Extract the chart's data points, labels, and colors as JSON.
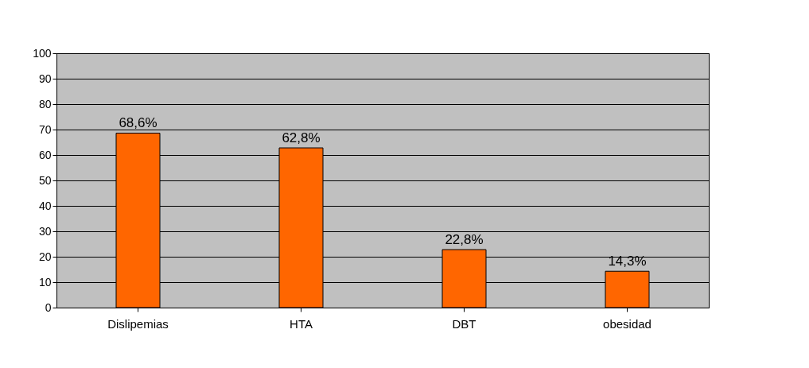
{
  "chart_data": {
    "type": "bar",
    "categories": [
      "Dislipemias",
      "HTA",
      "DBT",
      "obesidad"
    ],
    "values": [
      68.6,
      62.8,
      22.8,
      14.3
    ],
    "value_labels": [
      "68,6%",
      "62,8%",
      "22,8%",
      "14,3%"
    ],
    "color": "#ff6600",
    "ylim": [
      0,
      100
    ],
    "yticks": [
      0,
      10,
      20,
      30,
      40,
      50,
      60,
      70,
      80,
      90,
      100
    ],
    "grid": "y"
  }
}
